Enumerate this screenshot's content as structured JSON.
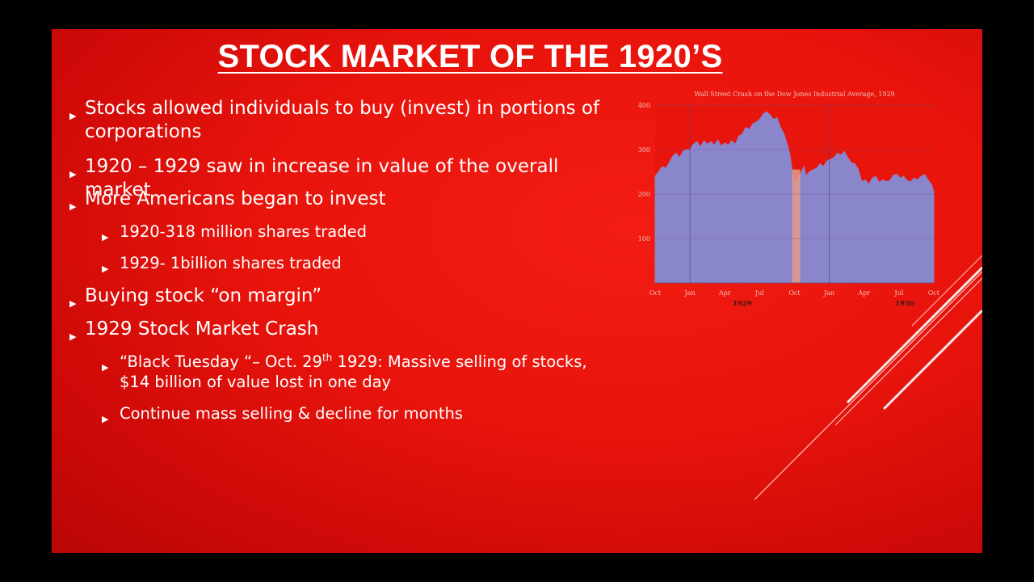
{
  "slide": {
    "title": "STOCK MARKET OF THE 1920’S",
    "bullets": [
      {
        "level": 1,
        "text": "Stocks allowed individuals to buy (invest) in portions of corporations"
      },
      {
        "level": 1,
        "text": "1920 – 1929 saw in increase in value of the overall market"
      },
      {
        "level": 1,
        "text": "More Americans began to invest"
      },
      {
        "level": 2,
        "text": "1920-318 million shares traded"
      },
      {
        "level": 2,
        "text": "1929- 1billion shares traded"
      },
      {
        "level": 1,
        "text": "Buying stock “on margin”"
      },
      {
        "level": 1,
        "text": "1929 Stock Market Crash"
      },
      {
        "level": 2,
        "text_pre": "“Black Tuesday “– Oct. 29",
        "text_sup": "th",
        "text_post": " 1929: Massive selling of stocks, $14 billion of value lost in one day"
      },
      {
        "level": 2,
        "text": "Continue mass selling & decline for months"
      }
    ]
  },
  "chart_data": {
    "type": "area",
    "title": "Wall Street Crash on the Dow Jones Industrial Average, 1929",
    "xlabel": "",
    "ylabel": "",
    "ylim": [
      0,
      400
    ],
    "yticks": [
      100,
      200,
      300,
      400
    ],
    "x_ticks": [
      "Oct",
      "Jan",
      "Apr",
      "Jul",
      "Oct",
      "Jan",
      "Apr",
      "Jul",
      "Oct"
    ],
    "year_labels": [
      "1929",
      "1930"
    ],
    "grid": true,
    "fill_color": "#8a86cc",
    "highlight_color": "#e49a88",
    "highlight_range_months": [
      11.8,
      12.5
    ],
    "x_months": [
      0,
      0.3,
      0.6,
      0.9,
      1.2,
      1.5,
      1.8,
      2.1,
      2.4,
      2.7,
      3.0,
      3.3,
      3.6,
      3.9,
      4.2,
      4.5,
      4.8,
      5.1,
      5.4,
      5.7,
      6.0,
      6.3,
      6.6,
      6.9,
      7.2,
      7.5,
      7.8,
      8.1,
      8.4,
      8.7,
      9.0,
      9.3,
      9.6,
      9.9,
      10.2,
      10.5,
      10.8,
      11.1,
      11.4,
      11.6,
      11.8,
      12.0,
      12.2,
      12.4,
      12.6,
      12.8,
      13.0,
      13.3,
      13.6,
      13.9,
      14.2,
      14.5,
      14.8,
      15.1,
      15.4,
      15.7,
      16.0,
      16.3,
      16.6,
      16.9,
      17.2,
      17.5,
      17.8,
      18.1,
      18.4,
      18.7,
      19.0,
      19.3,
      19.6,
      19.9,
      20.2,
      20.5,
      20.8,
      21.1,
      21.4,
      21.7,
      22.0,
      22.3,
      22.6,
      22.9,
      23.2,
      23.5,
      23.8,
      24.0
    ],
    "values": [
      240,
      250,
      262,
      258,
      270,
      285,
      292,
      282,
      296,
      300,
      300,
      312,
      318,
      306,
      320,
      312,
      318,
      310,
      322,
      308,
      315,
      310,
      320,
      312,
      330,
      335,
      350,
      345,
      358,
      362,
      368,
      380,
      385,
      378,
      368,
      372,
      350,
      335,
      310,
      290,
      255,
      220,
      232,
      240,
      250,
      262,
      242,
      250,
      255,
      258,
      268,
      262,
      275,
      278,
      282,
      292,
      288,
      296,
      282,
      270,
      268,
      255,
      228,
      232,
      222,
      236,
      240,
      226,
      232,
      228,
      230,
      242,
      245,
      236,
      240,
      230,
      228,
      236,
      232,
      240,
      244,
      232,
      222,
      205
    ]
  }
}
